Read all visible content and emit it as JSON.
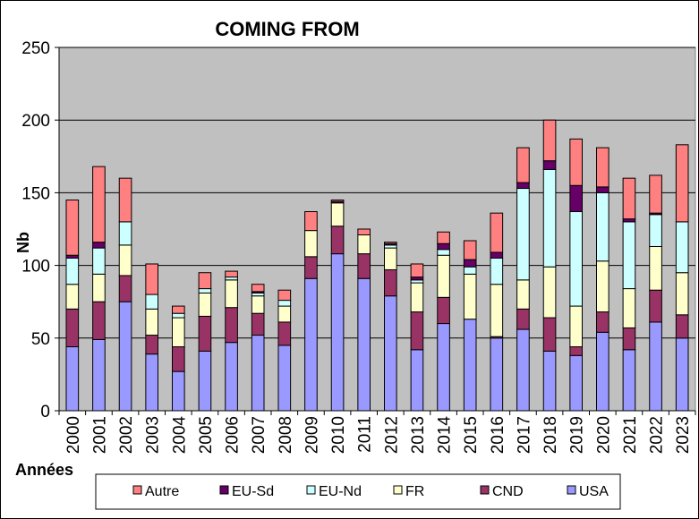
{
  "chart_data": {
    "type": "bar",
    "stacked": true,
    "title": "COMING FROM",
    "xlabel": "Années",
    "ylabel": "Nb",
    "ylim": [
      0,
      250
    ],
    "yticks": [
      0,
      50,
      100,
      150,
      200,
      250
    ],
    "grid": true,
    "legend_position": "bottom",
    "categories": [
      "2000",
      "2001",
      "2002",
      "2003",
      "2004",
      "2005",
      "2006",
      "2007",
      "2008",
      "2009",
      "2010",
      "2011",
      "2012",
      "2013",
      "2014",
      "2015",
      "2016",
      "2017",
      "2018",
      "2019",
      "2020",
      "2021",
      "2022",
      "2023"
    ],
    "series": [
      {
        "name": "USA",
        "color": "#9999ff",
        "values": [
          44,
          49,
          75,
          39,
          27,
          41,
          47,
          52,
          45,
          91,
          108,
          91,
          79,
          42,
          60,
          63,
          50,
          56,
          41,
          38,
          54,
          42,
          61,
          50
        ]
      },
      {
        "name": "CND",
        "color": "#993366",
        "values": [
          26,
          26,
          18,
          13,
          17,
          24,
          24,
          15,
          16,
          15,
          19,
          17,
          18,
          26,
          18,
          0,
          1,
          14,
          23,
          6,
          14,
          15,
          22,
          16
        ]
      },
      {
        "name": "FR",
        "color": "#ffffcc",
        "values": [
          17,
          19,
          21,
          18,
          20,
          16,
          19,
          12,
          11,
          18,
          16,
          13,
          15,
          20,
          29,
          31,
          36,
          20,
          35,
          28,
          35,
          27,
          30,
          29
        ]
      },
      {
        "name": "EU-Nd",
        "color": "#ccffff",
        "values": [
          18,
          18,
          16,
          10,
          3,
          3,
          2,
          2,
          4,
          0,
          0,
          0,
          2,
          2,
          4,
          5,
          18,
          63,
          67,
          65,
          47,
          46,
          22,
          35
        ]
      },
      {
        "name": "EU-Sd",
        "color": "#660066",
        "values": [
          2,
          4,
          0,
          0,
          0,
          0,
          0,
          1,
          0,
          0,
          1,
          0,
          1,
          2,
          4,
          5,
          4,
          4,
          6,
          18,
          4,
          2,
          1,
          0
        ]
      },
      {
        "name": "Autre",
        "color": "#ff8080",
        "values": [
          38,
          52,
          30,
          21,
          5,
          11,
          4,
          5,
          7,
          13,
          1,
          4,
          1,
          9,
          8,
          13,
          27,
          24,
          28,
          32,
          27,
          28,
          26,
          53
        ]
      }
    ],
    "legend_order": [
      "Autre",
      "EU-Sd",
      "EU-Nd",
      "FR",
      "CND",
      "USA"
    ],
    "plot_background": "#c0c0c0"
  }
}
